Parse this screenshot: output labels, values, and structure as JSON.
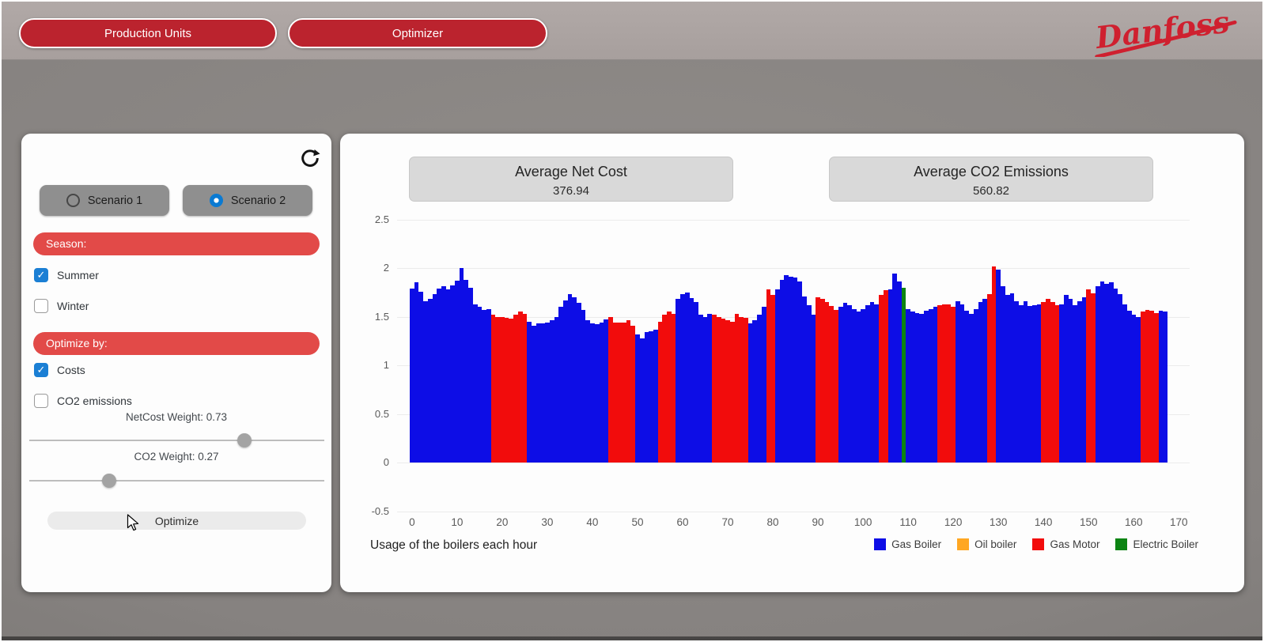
{
  "header": {
    "tabs": [
      {
        "label": "Production Units"
      },
      {
        "label": "Optimizer"
      }
    ],
    "logo_text": "Danfoss",
    "logo_color": "#cf202f"
  },
  "sidebar": {
    "scenarios": [
      {
        "label": "Scenario 1",
        "selected": false
      },
      {
        "label": "Scenario 2",
        "selected": true
      }
    ],
    "season_header": "Season:",
    "season_options": [
      {
        "label": "Summer",
        "checked": true
      },
      {
        "label": "Winter",
        "checked": false
      }
    ],
    "optimize_header": "Optimize by:",
    "optimize_options": [
      {
        "label": "Costs",
        "checked": true
      },
      {
        "label": "CO2 emissions",
        "checked": false
      }
    ],
    "netcost_weight_label": "NetCost Weight: 0.73",
    "netcost_weight_value": 0.73,
    "co2_weight_label": "CO2 Weight: 0.27",
    "co2_weight_value": 0.27,
    "optimize_button_label": "Optimize"
  },
  "stats": [
    {
      "title": "Average Net Cost",
      "value": "376.94"
    },
    {
      "title": "Average CO2 Emissions",
      "value": "560.82"
    }
  ],
  "chart_data": {
    "type": "bar",
    "title": "Usage of the boilers each hour",
    "xlabel": "",
    "ylabel": "",
    "ylim": [
      -0.5,
      2.5
    ],
    "yticks": [
      "2.5",
      "2",
      "1.5",
      "1",
      "0.5",
      "0",
      "-0.5"
    ],
    "xticks": [
      0,
      10,
      20,
      30,
      40,
      50,
      60,
      70,
      80,
      90,
      100,
      110,
      120,
      130,
      140,
      150,
      160,
      170
    ],
    "grid": true,
    "legend_position": "bottom-right",
    "legend": [
      {
        "label": "Gas Boiler",
        "key": "b",
        "color": "#0d0de6"
      },
      {
        "label": "Oil boiler",
        "key": "o",
        "color": "#ffa722"
      },
      {
        "label": "Gas Motor",
        "key": "r",
        "color": "#f20c0c"
      },
      {
        "label": "Electric Boiler",
        "key": "g",
        "color": "#0c8413"
      }
    ],
    "color_hex": {
      "b": "#0d0de6",
      "r": "#f20c0c",
      "g": "#0c8413",
      "o": "#ffa722"
    },
    "bars": {
      "x_is_hour_index": true,
      "colors": "bbbbbbbbbbbbbbbbbbrrrrrrrrbbbbbbbbbbbbbbbbbbrrrrrrbbbbbrrrrbbbbbbbbrrrrrrrrbbbbrrbbbbbbbbbrrrrrbbbbbbbbbrrbbbgbbbbbbbrrrrbbbbbbbrrbbbbbbbbbbrrrrbbbbbbrrbbbbbbbbbbrrrrbb",
      "values": [
        1.79,
        1.85,
        1.76,
        1.66,
        1.68,
        1.73,
        1.79,
        1.81,
        1.78,
        1.82,
        1.87,
        2.0,
        1.88,
        1.8,
        1.63,
        1.6,
        1.57,
        1.58,
        1.52,
        1.5,
        1.5,
        1.49,
        1.48,
        1.52,
        1.55,
        1.53,
        1.45,
        1.41,
        1.43,
        1.43,
        1.44,
        1.46,
        1.5,
        1.6,
        1.67,
        1.73,
        1.7,
        1.64,
        1.57,
        1.46,
        1.43,
        1.42,
        1.44,
        1.47,
        1.5,
        1.44,
        1.44,
        1.44,
        1.46,
        1.41,
        1.32,
        1.28,
        1.34,
        1.35,
        1.37,
        1.45,
        1.52,
        1.55,
        1.53,
        1.68,
        1.73,
        1.75,
        1.69,
        1.65,
        1.52,
        1.5,
        1.53,
        1.52,
        1.5,
        1.48,
        1.46,
        1.45,
        1.53,
        1.5,
        1.49,
        1.43,
        1.46,
        1.52,
        1.6,
        1.78,
        1.72,
        1.78,
        1.88,
        1.93,
        1.91,
        1.9,
        1.86,
        1.71,
        1.62,
        1.52,
        1.7,
        1.68,
        1.65,
        1.61,
        1.57,
        1.6,
        1.64,
        1.62,
        1.58,
        1.55,
        1.58,
        1.62,
        1.65,
        1.63,
        1.72,
        1.77,
        1.78,
        1.94,
        1.86,
        1.8,
        1.58,
        1.55,
        1.54,
        1.53,
        1.56,
        1.58,
        1.6,
        1.62,
        1.63,
        1.63,
        1.6,
        1.66,
        1.63,
        1.56,
        1.53,
        1.58,
        1.65,
        1.68,
        1.73,
        2.02,
        1.98,
        1.81,
        1.72,
        1.74,
        1.66,
        1.62,
        1.66,
        1.61,
        1.62,
        1.63,
        1.65,
        1.68,
        1.65,
        1.62,
        1.63,
        1.72,
        1.68,
        1.62,
        1.66,
        1.7,
        1.78,
        1.74,
        1.81,
        1.86,
        1.84,
        1.85,
        1.79,
        1.73,
        1.63,
        1.56,
        1.52,
        1.5,
        1.55,
        1.57,
        1.56,
        1.54,
        1.56,
        1.55
      ]
    }
  }
}
